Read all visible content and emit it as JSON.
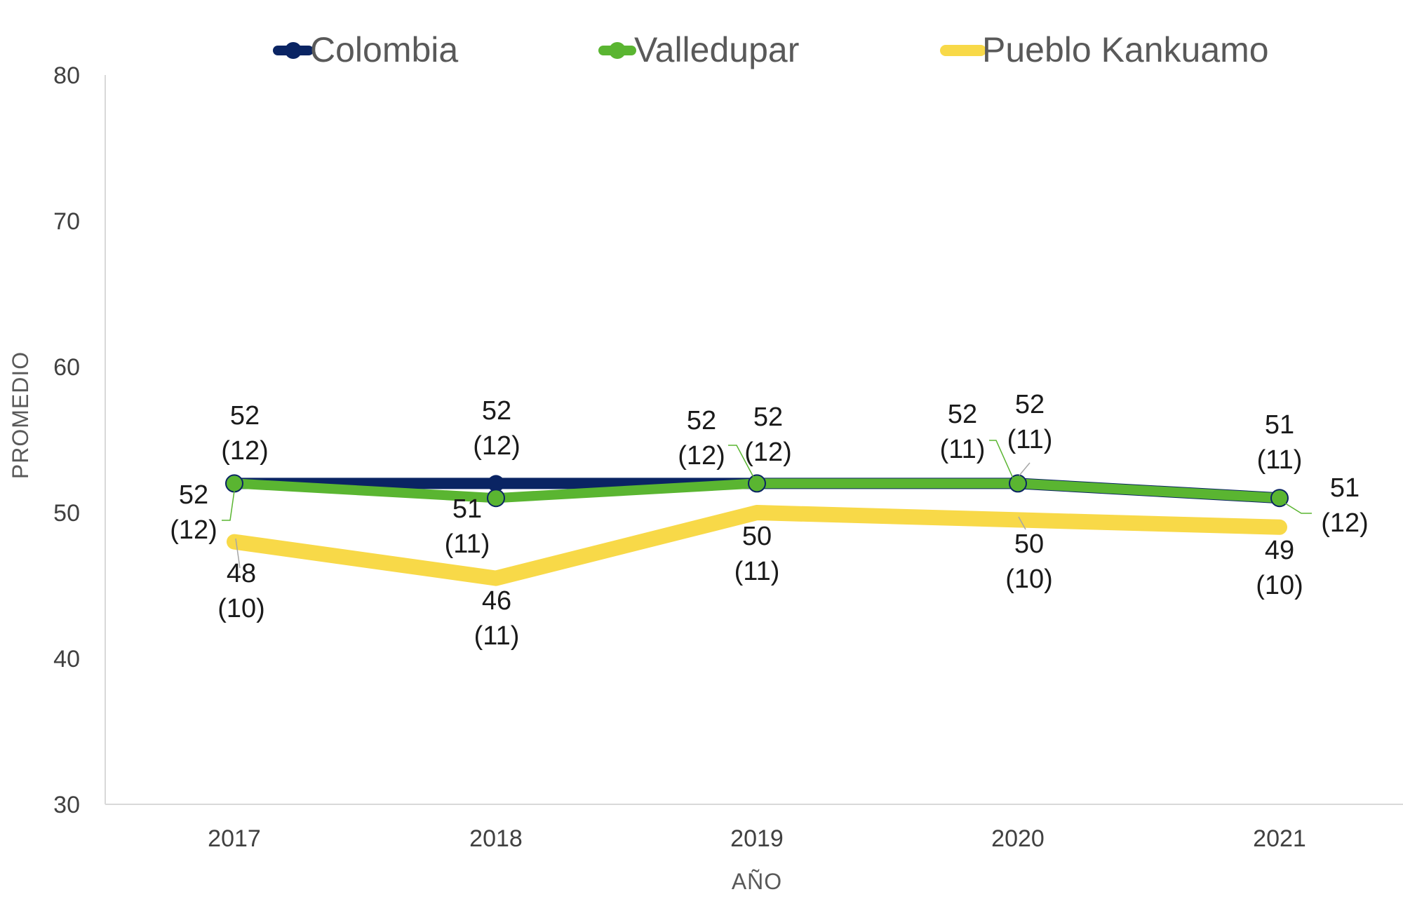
{
  "chart_data": {
    "type": "line",
    "categories": [
      "2017",
      "2018",
      "2019",
      "2020",
      "2021"
    ],
    "xlabel": "AÑO",
    "ylabel": "PROMEDIO",
    "ylim": [
      30,
      80
    ],
    "yticks": [
      30,
      40,
      50,
      60,
      70,
      80
    ],
    "grid": false,
    "legend_position": "top",
    "series": [
      {
        "name": "Colombia",
        "color": "#0a2463",
        "values": [
          52,
          52,
          52,
          52,
          51
        ],
        "sd": [
          12,
          12,
          12,
          11,
          11
        ]
      },
      {
        "name": "Valledupar",
        "color": "#5ab531",
        "values": [
          52,
          51,
          52,
          52,
          51
        ],
        "sd": [
          12,
          11,
          12,
          11,
          12
        ]
      },
      {
        "name": "Pueblo Kankuamo",
        "color": "#f8d948",
        "values": [
          48,
          45.5,
          50,
          49.5,
          49
        ],
        "value_labels": [
          "48",
          "46",
          "50",
          "50",
          "49"
        ],
        "sd": [
          10,
          11,
          11,
          10,
          10
        ]
      }
    ]
  }
}
